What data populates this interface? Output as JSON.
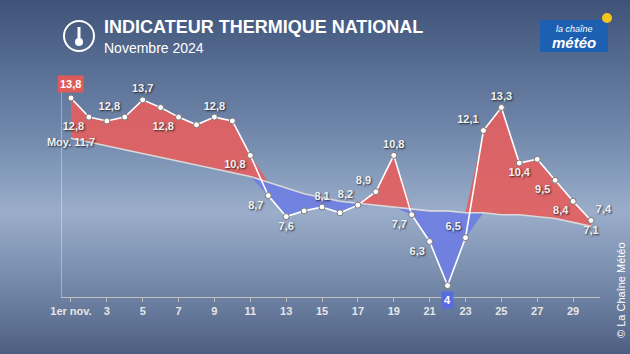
{
  "chart_data": {
    "type": "line",
    "title": "INDICATEUR THERMIQUE NATIONAL",
    "subtitle": "Novembre 2024",
    "logo": [
      "la chaîne",
      "météo"
    ],
    "credit": "© La Chaîne Météo",
    "categories": [
      "1er nov.",
      null,
      "3",
      null,
      "5",
      null,
      "7",
      null,
      "9",
      null,
      "11",
      null,
      "13",
      null,
      "15",
      null,
      "17",
      null,
      "19",
      null,
      "21",
      null,
      "23",
      null,
      "25",
      null,
      "27",
      null,
      "29",
      null
    ],
    "series": [
      {
        "color": "#ffffff",
        "marker": "circle",
        "line_style": "solid",
        "values": [
          13.8,
          12.8,
          12.6,
          12.8,
          13.7,
          13.3,
          12.8,
          12.4,
          12.8,
          12.6,
          10.8,
          8.7,
          7.6,
          7.9,
          8.1,
          7.8,
          8.2,
          8.9,
          10.8,
          7.7,
          6.3,
          4,
          6.5,
          12.1,
          13.3,
          10.4,
          10.6,
          9.5,
          8.4,
          7.4
        ],
        "value_labels": [
          "13,8",
          "12,8",
          null,
          "12,8",
          "13,7",
          null,
          "12,8",
          null,
          "12,8",
          null,
          "10,8",
          "8,7",
          "7,6",
          null,
          "8,1",
          null,
          "8,2",
          "8,9",
          "10,8",
          "7,7",
          "6,3",
          "4",
          "6,5",
          "12,1",
          "13,3",
          "10,4",
          null,
          "9,5",
          "8,4",
          "7,4"
        ]
      },
      {
        "color": "#d9d9d9",
        "line_style": "solid",
        "values": [
          11.7,
          11.5,
          11.3,
          11.1,
          10.9,
          10.7,
          10.5,
          10.3,
          10.1,
          9.9,
          9.7,
          9.4,
          9.1,
          8.8,
          8.6,
          8.4,
          8.3,
          8.2,
          8.1,
          8.0,
          7.9,
          7.9,
          7.8,
          7.8,
          7.7,
          7.7,
          7.6,
          7.5,
          7.3,
          7.1
        ],
        "value_labels": [
          "Moy. 11,7",
          null,
          null,
          null,
          null,
          null,
          null,
          null,
          null,
          null,
          null,
          null,
          null,
          null,
          null,
          null,
          null,
          null,
          null,
          null,
          null,
          null,
          null,
          null,
          null,
          null,
          null,
          null,
          null,
          "7,1"
        ]
      }
    ],
    "ylim": [
      3.4,
      15
    ],
    "tick_labels": "x",
    "data_labels": true,
    "grid": false
  }
}
